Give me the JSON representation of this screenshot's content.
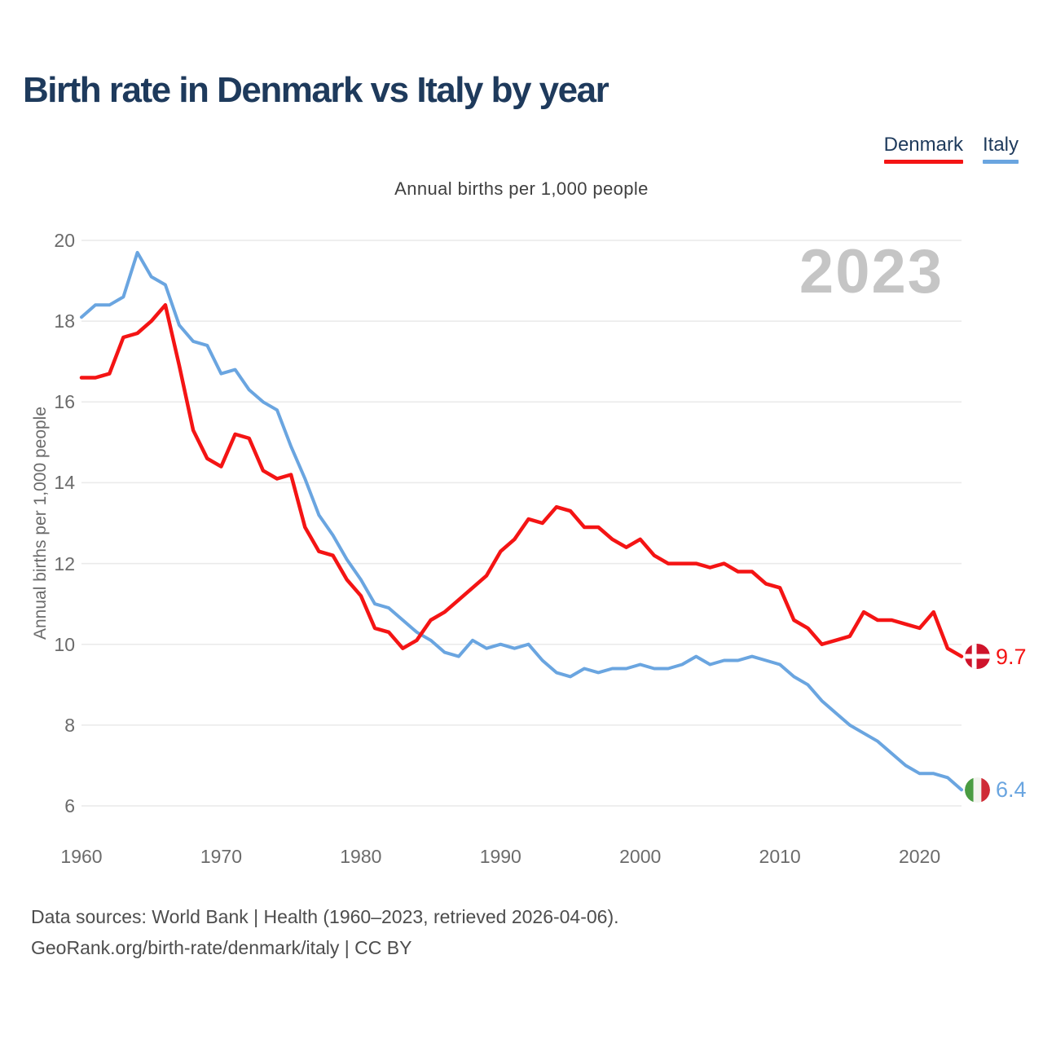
{
  "page": {
    "title": "Birth rate in Denmark vs Italy by year",
    "subtitle": "Annual births per 1,000 people",
    "watermark": "2023",
    "footer_line1": "Data sources: World Bank | Health (1960–2023, retrieved 2026-04-06).",
    "footer_line2": "GeoRank.org/birth-rate/denmark/italy | CC BY"
  },
  "legend": [
    {
      "label": "Denmark",
      "color": "#f41414"
    },
    {
      "label": "Italy",
      "color": "#6aa5e0"
    }
  ],
  "end_labels": [
    {
      "series": "Denmark",
      "value": "9.7",
      "flag": "denmark-flag"
    },
    {
      "series": "Italy",
      "value": "6.4",
      "flag": "italy-flag"
    }
  ],
  "colors": {
    "denmark": "#f41414",
    "italy": "#6aa5e0",
    "title": "#1e3a5c",
    "axis_text": "#6b6b6b",
    "grid": "#eaeaea",
    "watermark": "#c5c5c5",
    "footer": "#4d4d4d",
    "subtitle": "#404040"
  },
  "chart_data": {
    "type": "line",
    "title": "Birth rate in Denmark vs Italy by year",
    "subtitle": "Annual births per 1,000 people",
    "xlabel": "",
    "ylabel": "Annual births per 1,000 people",
    "xlim": [
      1960,
      2023
    ],
    "ylim": [
      6,
      20
    ],
    "xticks": [
      1960,
      1970,
      1980,
      1990,
      2000,
      2010,
      2020
    ],
    "yticks": [
      6,
      8,
      10,
      12,
      14,
      16,
      18,
      20
    ],
    "grid": "horizontal",
    "legend_position": "top-right",
    "watermark": "2023",
    "years": [
      1960,
      1961,
      1962,
      1963,
      1964,
      1965,
      1966,
      1967,
      1968,
      1969,
      1970,
      1971,
      1972,
      1973,
      1974,
      1975,
      1976,
      1977,
      1978,
      1979,
      1980,
      1981,
      1982,
      1983,
      1984,
      1985,
      1986,
      1987,
      1988,
      1989,
      1990,
      1991,
      1992,
      1993,
      1994,
      1995,
      1996,
      1997,
      1998,
      1999,
      2000,
      2001,
      2002,
      2003,
      2004,
      2005,
      2006,
      2007,
      2008,
      2009,
      2010,
      2011,
      2012,
      2013,
      2014,
      2015,
      2016,
      2017,
      2018,
      2019,
      2020,
      2021,
      2022,
      2023
    ],
    "series": [
      {
        "name": "Denmark",
        "color": "#f41414",
        "end_value": 9.7,
        "values": [
          16.6,
          16.6,
          16.7,
          17.6,
          17.7,
          18.0,
          18.4,
          16.9,
          15.3,
          14.6,
          14.4,
          15.2,
          15.1,
          14.3,
          14.1,
          14.2,
          12.9,
          12.3,
          12.2,
          11.6,
          11.2,
          10.4,
          10.3,
          9.9,
          10.1,
          10.6,
          10.8,
          11.1,
          11.4,
          11.7,
          12.3,
          12.6,
          13.1,
          13.0,
          13.4,
          13.3,
          12.9,
          12.9,
          12.6,
          12.4,
          12.6,
          12.2,
          12.0,
          12.0,
          12.0,
          11.9,
          12.0,
          11.8,
          11.8,
          11.5,
          11.4,
          10.6,
          10.4,
          10.0,
          10.1,
          10.2,
          10.8,
          10.6,
          10.6,
          10.5,
          10.4,
          10.8,
          9.9,
          9.7
        ]
      },
      {
        "name": "Italy",
        "color": "#6aa5e0",
        "end_value": 6.4,
        "values": [
          18.1,
          18.4,
          18.4,
          18.6,
          19.7,
          19.1,
          18.9,
          17.9,
          17.5,
          17.4,
          16.7,
          16.8,
          16.3,
          16.0,
          15.8,
          14.9,
          14.1,
          13.2,
          12.7,
          12.1,
          11.6,
          11.0,
          10.9,
          10.6,
          10.3,
          10.1,
          9.8,
          9.7,
          10.1,
          9.9,
          10.0,
          9.9,
          10.0,
          9.6,
          9.3,
          9.2,
          9.4,
          9.3,
          9.4,
          9.4,
          9.5,
          9.4,
          9.4,
          9.5,
          9.7,
          9.5,
          9.6,
          9.6,
          9.7,
          9.6,
          9.5,
          9.2,
          9.0,
          8.6,
          8.3,
          8.0,
          7.8,
          7.6,
          7.3,
          7.0,
          6.8,
          6.8,
          6.7,
          6.4
        ]
      }
    ]
  }
}
